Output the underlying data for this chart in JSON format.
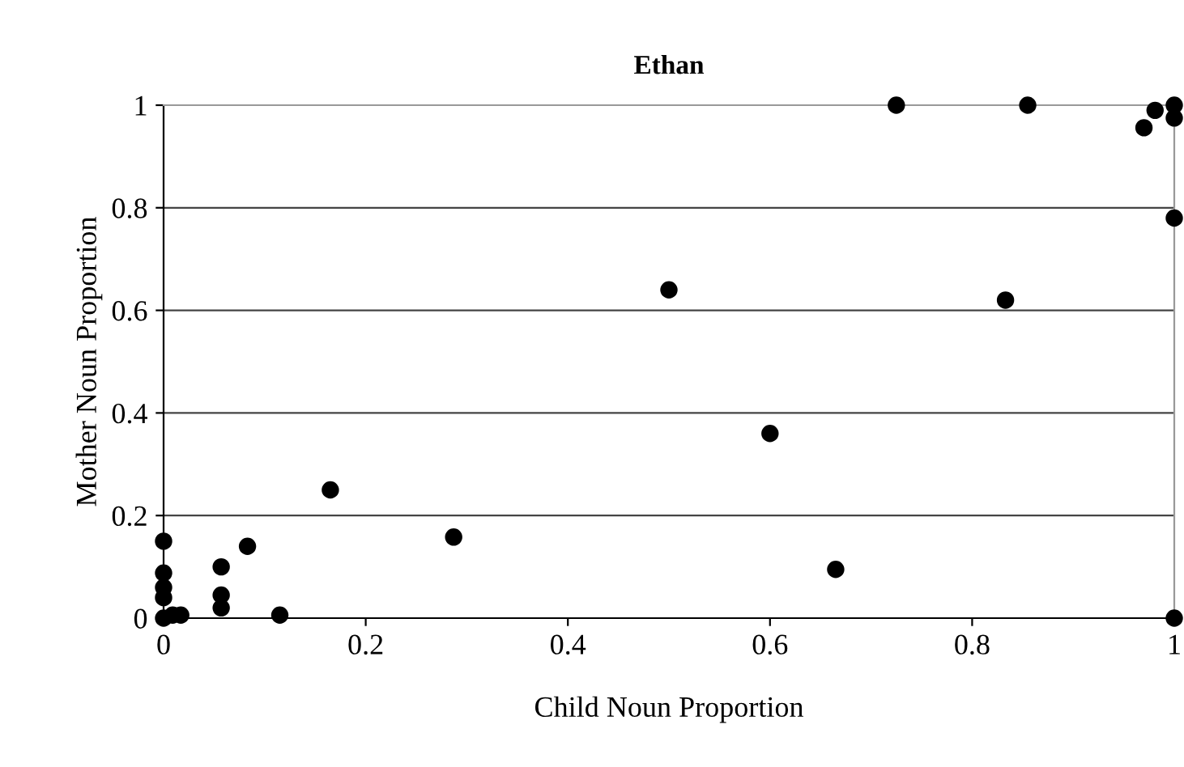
{
  "chart_data": {
    "type": "scatter",
    "title": "Ethan",
    "xlabel": "Child Noun Proportion",
    "ylabel": "Mother Noun Proportion",
    "series": [
      {
        "color": "#000000",
        "x": [
          0,
          0,
          0,
          0,
          0,
          0.009,
          0.017,
          0.057,
          0.057,
          0.057,
          0.083,
          0.115,
          0.165,
          0.287,
          0.5,
          0.6,
          0.665,
          0.725,
          0.833,
          0.855,
          0.97,
          0.981,
          1,
          1,
          1,
          1
        ],
        "values": [
          0,
          0.04,
          0.06,
          0.088,
          0.15,
          0.006,
          0.006,
          0.02,
          0.045,
          0.1,
          0.14,
          0.006,
          0.25,
          0.158,
          0.64,
          0.36,
          0.095,
          1.0,
          0.62,
          1.0,
          0.956,
          0.99,
          1.0,
          0.975,
          0.78,
          0
        ]
      }
    ],
    "xlim": [
      0,
      1
    ],
    "ylim": [
      0,
      1
    ],
    "xticks": [
      0,
      0.2,
      0.4,
      0.6,
      0.8,
      1
    ],
    "yticks": [
      0,
      0.2,
      0.4,
      0.6,
      0.8,
      1
    ],
    "grid": "y",
    "marker": "circle",
    "legend": false
  }
}
